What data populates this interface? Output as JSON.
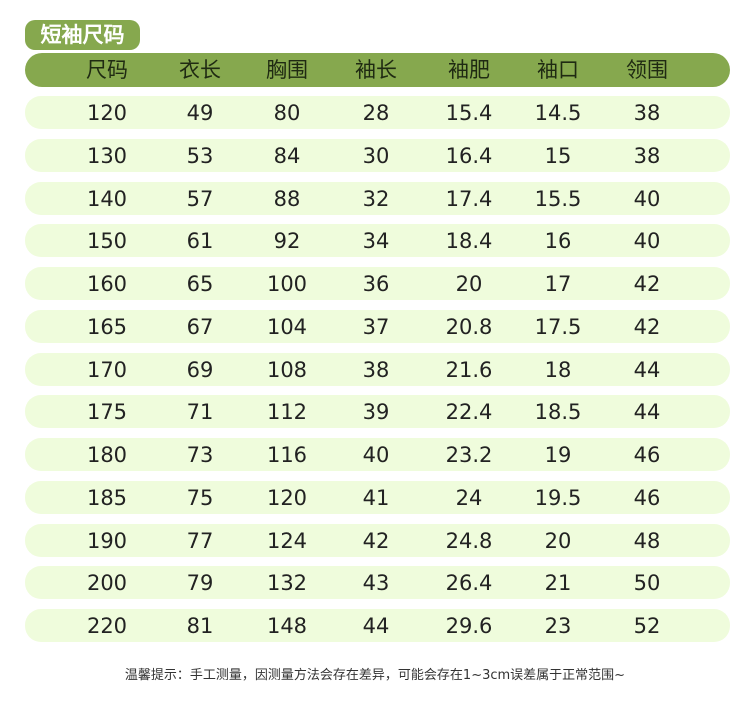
{
  "title": "短袖尺码",
  "colors": {
    "accent": "#86a84e",
    "row_bg": "#effcdc"
  },
  "table": {
    "headers": [
      "尺码",
      "衣长",
      "胸围",
      "袖长",
      "袖肥",
      "袖口",
      "领围"
    ],
    "rows": [
      [
        "120",
        "49",
        "80",
        "28",
        "15.4",
        "14.5",
        "38"
      ],
      [
        "130",
        "53",
        "84",
        "30",
        "16.4",
        "15",
        "38"
      ],
      [
        "140",
        "57",
        "88",
        "32",
        "17.4",
        "15.5",
        "40"
      ],
      [
        "150",
        "61",
        "92",
        "34",
        "18.4",
        "16",
        "40"
      ],
      [
        "160",
        "65",
        "100",
        "36",
        "20",
        "17",
        "42"
      ],
      [
        "165",
        "67",
        "104",
        "37",
        "20.8",
        "17.5",
        "42"
      ],
      [
        "170",
        "69",
        "108",
        "38",
        "21.6",
        "18",
        "44"
      ],
      [
        "175",
        "71",
        "112",
        "39",
        "22.4",
        "18.5",
        "44"
      ],
      [
        "180",
        "73",
        "116",
        "40",
        "23.2",
        "19",
        "46"
      ],
      [
        "185",
        "75",
        "120",
        "41",
        "24",
        "19.5",
        "46"
      ],
      [
        "190",
        "77",
        "124",
        "42",
        "24.8",
        "20",
        "48"
      ],
      [
        "200",
        "79",
        "132",
        "43",
        "26.4",
        "21",
        "50"
      ],
      [
        "220",
        "81",
        "148",
        "44",
        "29.6",
        "23",
        "52"
      ]
    ]
  },
  "note": "温馨提示：手工测量，因测量方法会存在差异，可能会存在1~3cm误差属于正常范围~"
}
